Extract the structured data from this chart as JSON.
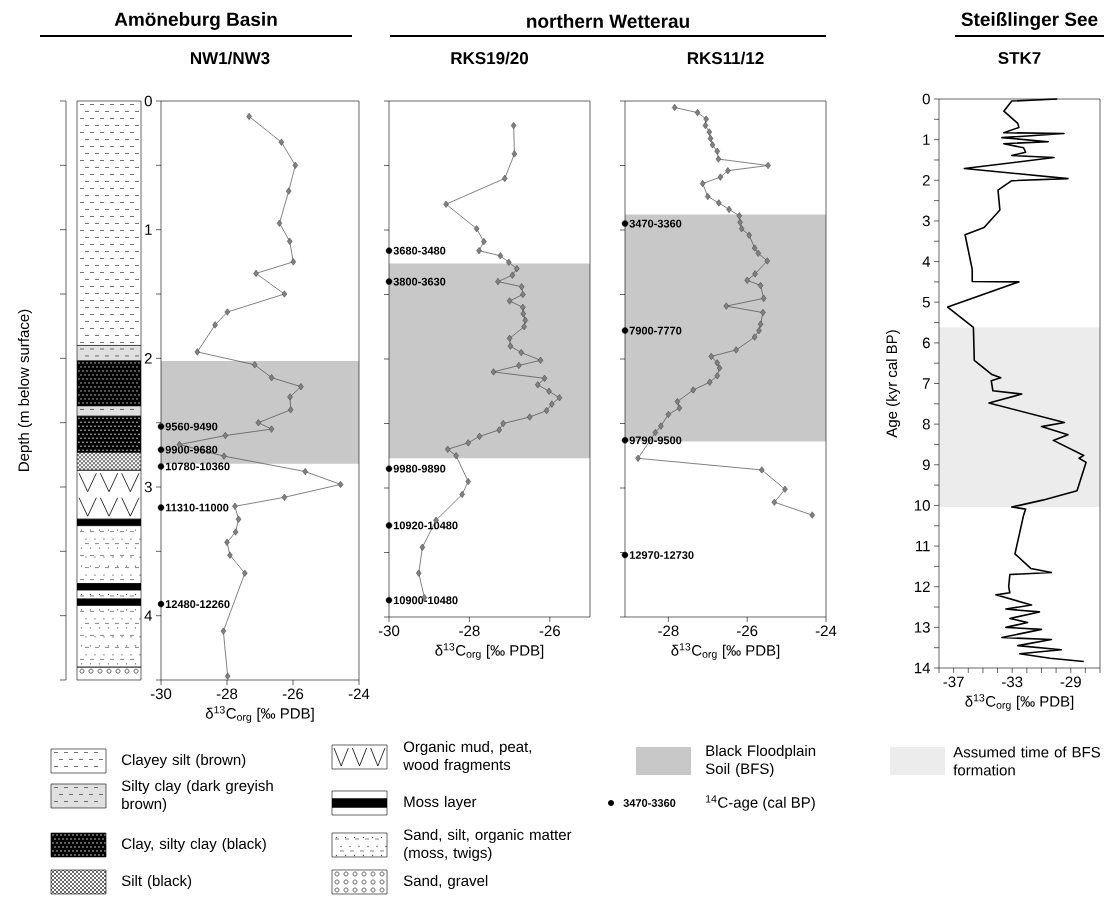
{
  "chart_data": [
    {
      "type": "line",
      "title": "Amöneburg Basin",
      "subtitle": "NW1/NW3",
      "xlabel": "δ$^{13}$C$_{org}$ [‰ PDB]",
      "ylabel": "Depth (m below surface)",
      "xlim": [
        -30,
        -24
      ],
      "xticks": [
        -30,
        -28,
        -26,
        -24
      ],
      "ylim": [
        4.5,
        0
      ],
      "yticks": [
        0,
        {
          "value": 0.5,
          "label": null
        },
        1,
        {
          "value": 1.5,
          "label": null
        },
        2,
        {
          "value": 2.5,
          "label": null
        },
        3,
        {
          "value": 3.5,
          "label": null
        },
        4,
        {
          "value": 4.5,
          "label": null
        }
      ],
      "marker": "diamond",
      "legend": "bottom",
      "bands": [
        {
          "axis": "y",
          "from": 2.02,
          "to": 2.82,
          "label": "Black Floodplain Soil (BFS)",
          "color": "#c8c8c8"
        }
      ],
      "annotations": [
        "Clayey silt (brown)",
        "Silty clay (dark greyish brown)",
        "Clay, silty clay (black)",
        "Silt (black)",
        "Organic mud, peat, wood fragments",
        "Moss layer",
        "Sand, silt, organic matter (moss, twigs)",
        "Sand, gravel"
      ],
      "series": [
        {
          "color": "#808080",
          "x": [
            -27.33,
            -26.35,
            -25.93,
            -26.13,
            -26.41,
            -26.1,
            -25.99,
            -27.12,
            -26.26,
            -27.99,
            -28.36,
            -28.9,
            -27.16,
            -26.65,
            -25.76,
            -26.09,
            -26.07,
            -27.05,
            -26.65,
            -28.05,
            -29.44,
            -28.09,
            -25.63,
            -24.56,
            -26.26,
            -27.76,
            -27.65,
            -27.74,
            -28.0,
            -27.91,
            -27.46,
            -28.11,
            -27.98
          ],
          "values": [
            0.12,
            0.32,
            0.5,
            0.7,
            0.95,
            1.09,
            1.25,
            1.34,
            1.5,
            1.64,
            1.74,
            1.95,
            2.05,
            2.15,
            2.22,
            2.3,
            2.4,
            2.5,
            2.55,
            2.6,
            2.67,
            2.76,
            2.88,
            2.98,
            3.08,
            3.15,
            3.25,
            3.35,
            3.43,
            3.53,
            3.67,
            4.12,
            4.47
          ]
        },
        {
          "type": "scatter",
          "marker": "circle",
          "color": "#000000",
          "x": [
            -30,
            -30,
            -30,
            -30,
            -30
          ],
          "values": [
            2.53,
            2.71,
            2.84,
            3.16,
            3.91
          ],
          "value_labels": [
            "9560-9490",
            "9900-9680",
            "10780-10360",
            "11310-11000",
            "12480-12260"
          ]
        }
      ]
    },
    {
      "type": "line",
      "title": "northern Wetterau",
      "subtitle": "RKS19/20",
      "xlabel": "δ$^{13}$C$_{org}$ [‰ PDB]",
      "xlim": [
        -30,
        -25
      ],
      "xticks": [
        -30,
        -28,
        -26
      ],
      "ylim": [
        4,
        0
      ],
      "tick_labels": "x",
      "yticks": [
        0,
        0.5,
        1,
        1.5,
        2,
        2.5,
        3,
        3.5,
        4
      ],
      "marker": "diamond",
      "bands": [
        {
          "axis": "y",
          "from": 1.26,
          "to": 2.77,
          "color": "#c8c8c8"
        }
      ],
      "series": [
        {
          "color": "#808080",
          "x": [
            -26.9,
            -26.88,
            -27.12,
            -28.58,
            -27.82,
            -27.64,
            -27.76,
            -27.23,
            -27.02,
            -26.82,
            -26.93,
            -27.29,
            -26.7,
            -26.67,
            -27.0,
            -26.67,
            -26.66,
            -26.61,
            -26.64,
            -27.0,
            -26.98,
            -26.71,
            -26.23,
            -26.77,
            -27.4,
            -26.13,
            -26.3,
            -26.02,
            -25.76,
            -25.95,
            -26.08,
            -26.5,
            -27.16,
            -27.26,
            -27.75,
            -28.03,
            -28.54,
            -28.33,
            -28.03,
            -28.18,
            -28.83,
            -29.17,
            -29.26,
            -29.12
          ],
          "values": [
            0.19,
            0.41,
            0.6,
            0.8,
            0.99,
            1.09,
            1.16,
            1.2,
            1.25,
            1.3,
            1.35,
            1.4,
            1.44,
            1.5,
            1.55,
            1.6,
            1.65,
            1.7,
            1.75,
            1.84,
            1.9,
            1.95,
            2.01,
            2.05,
            2.1,
            2.15,
            2.2,
            2.25,
            2.3,
            2.35,
            2.4,
            2.45,
            2.5,
            2.55,
            2.6,
            2.65,
            2.7,
            2.75,
            2.95,
            3.05,
            3.25,
            3.46,
            3.66,
            3.85
          ]
        },
        {
          "type": "scatter",
          "marker": "circle",
          "color": "#000000",
          "x": [
            -30,
            -30,
            -30,
            -30,
            -30
          ],
          "values": [
            1.16,
            1.4,
            2.85,
            3.29,
            3.87
          ],
          "value_labels": [
            "3680-3480",
            "3800-3630",
            "9980-9890",
            "10920-10480",
            "10900-10480"
          ]
        }
      ]
    },
    {
      "type": "line",
      "subtitle": "RKS11/12",
      "xlabel": "δ$^{13}$C$_{org}$ [‰ PDB]",
      "xlim": [
        -29.1,
        -24
      ],
      "xticks": [
        -28,
        -26,
        -24
      ],
      "ylim": [
        4,
        0
      ],
      "tick_labels": "x",
      "yticks": [
        0,
        0.5,
        1,
        1.5,
        2,
        2.5,
        3,
        3.5,
        4
      ],
      "marker": "diamond",
      "legend": "bottom",
      "bands": [
        {
          "axis": "y",
          "from": 0.88,
          "to": 2.64,
          "color": "#c8c8c8"
        }
      ],
      "series": [
        {
          "color": "#808080",
          "x": [
            -27.84,
            -27.26,
            -27.04,
            -27.06,
            -26.96,
            -26.93,
            -26.88,
            -26.76,
            -26.73,
            -25.47,
            -26.49,
            -26.68,
            -27.13,
            -27.0,
            -26.72,
            -26.46,
            -26.2,
            -26.18,
            -26.14,
            -25.95,
            -25.81,
            -25.72,
            -25.49,
            -25.8,
            -26.0,
            -25.66,
            -25.58,
            -26.53,
            -25.6,
            -25.66,
            -25.7,
            -25.81,
            -26.28,
            -26.91,
            -26.76,
            -26.7,
            -26.76,
            -26.95,
            -27.37,
            -27.77,
            -27.72,
            -28.0,
            -28.19,
            -28.33,
            -28.77,
            -25.63,
            -25.04,
            -25.31,
            -24.35
          ],
          "values": [
            0.05,
            0.09,
            0.14,
            0.19,
            0.24,
            0.29,
            0.34,
            0.39,
            0.45,
            0.5,
            0.54,
            0.59,
            0.64,
            0.74,
            0.79,
            0.84,
            0.89,
            0.94,
            0.99,
            1.04,
            1.14,
            1.18,
            1.24,
            1.34,
            1.39,
            1.43,
            1.53,
            1.59,
            1.64,
            1.73,
            1.78,
            1.83,
            1.93,
            1.98,
            2.03,
            2.07,
            2.13,
            2.18,
            2.24,
            2.33,
            2.38,
            2.43,
            2.52,
            2.57,
            2.77,
            2.86,
            3.01,
            3.11,
            3.21
          ]
        },
        {
          "type": "scatter",
          "name": "$^{14}$C-age (cal BP)",
          "marker": "circle",
          "color": "#000000",
          "x": [
            -29.1,
            -29.1,
            -29.1,
            -29.1
          ],
          "values": [
            0.95,
            1.78,
            2.63,
            3.52
          ],
          "value_labels": [
            "3470-3360",
            "7900-7770",
            "9790-9500",
            "12970-12730"
          ]
        }
      ]
    },
    {
      "type": "line",
      "title": "Steißlinger See",
      "subtitle": "STK7",
      "xlabel": "δ$^{13}$C$_{org}$ [‰ PDB]",
      "ylabel": "Age (kyr cal BP)",
      "xlim": [
        -38,
        -27
      ],
      "xticks": [
        {
          "value": -38,
          "label": null
        },
        -37,
        {
          "value": -36,
          "label": null
        },
        {
          "value": -35,
          "label": null
        },
        {
          "value": -34,
          "label": null
        },
        -33,
        {
          "value": -32,
          "label": null
        },
        {
          "value": -31,
          "label": null
        },
        {
          "value": -30,
          "label": null
        },
        -29,
        {
          "value": -28,
          "label": null
        },
        {
          "value": -27,
          "label": null
        }
      ],
      "ylim": [
        14,
        0
      ],
      "yticks": [
        0,
        {
          "value": 0.5,
          "label": null
        },
        1,
        {
          "value": 1.5,
          "label": null
        },
        2,
        {
          "value": 2.5,
          "label": null
        },
        3,
        {
          "value": 3.5,
          "label": null
        },
        4,
        {
          "value": 4.5,
          "label": null
        },
        5,
        {
          "value": 5.5,
          "label": null
        },
        6,
        {
          "value": 6.5,
          "label": null
        },
        7,
        {
          "value": 7.5,
          "label": null
        },
        8,
        {
          "value": 8.5,
          "label": null
        },
        9,
        {
          "value": 9.5,
          "label": null
        },
        10,
        {
          "value": 10.5,
          "label": null
        },
        11,
        {
          "value": 11.5,
          "label": null
        },
        12,
        {
          "value": 12.5,
          "label": null
        },
        13,
        {
          "value": 13.5,
          "label": null
        },
        14
      ],
      "marker": "none",
      "legend": "bottom",
      "bands": [
        {
          "axis": "y",
          "from": 5.62,
          "to": 10.04,
          "label": "Assumed time of BFS formation",
          "color": "#ececec"
        }
      ],
      "series": [
        {
          "color": "#000000",
          "x": [
            -29.92,
            -33.03,
            -33.57,
            -32.62,
            -32.54,
            -33.57,
            -29.46,
            -33.7,
            -30.54,
            -33.57,
            -32.22,
            -32.08,
            -33.03,
            -30.14,
            -36.27,
            -29.19,
            -33.03,
            -33.97,
            -33.84,
            -34.92,
            -36.22,
            -35.73,
            -35.73,
            -32.54,
            -37.41,
            -35.65,
            -35.59,
            -34.38,
            -33.78,
            -34.43,
            -34.32,
            -32.35,
            -34.59,
            -29.43,
            -31.0,
            -29.19,
            -30.19,
            -28.11,
            -28.43,
            -27.95,
            -28.57,
            -30.92,
            -33.03,
            -32.08,
            -32.22,
            -32.81,
            -31.73,
            -30.32,
            -33.16,
            -33.24,
            -33.16,
            -34.11,
            -31.68,
            -33.43,
            -31.14,
            -33.16,
            -31.95,
            -33.43,
            -31.0,
            -33.7,
            -30.32,
            -32.62,
            -29.65,
            -32.49,
            -30.41,
            -28.11
          ],
          "values": [
            0,
            0.05,
            0.3,
            0.6,
            0.7,
            0.83,
            0.85,
            0.95,
            1.05,
            1.1,
            1.2,
            1.31,
            1.39,
            1.44,
            1.71,
            1.96,
            2.01,
            2.24,
            2.73,
            3.16,
            3.34,
            4.19,
            4.49,
            4.5,
            5.12,
            5.62,
            6.43,
            6.78,
            6.86,
            6.93,
            7.18,
            7.26,
            7.48,
            7.96,
            8.06,
            8.26,
            8.4,
            8.77,
            8.84,
            8.94,
            9.64,
            9.87,
            10.04,
            10.09,
            10.24,
            11.19,
            11.55,
            11.65,
            11.7,
            12.0,
            12.15,
            12.2,
            12.45,
            12.55,
            12.62,
            12.78,
            12.88,
            13.0,
            13.05,
            13.25,
            13.3,
            13.45,
            13.55,
            13.65,
            13.76,
            13.84
          ]
        }
      ]
    }
  ]
}
